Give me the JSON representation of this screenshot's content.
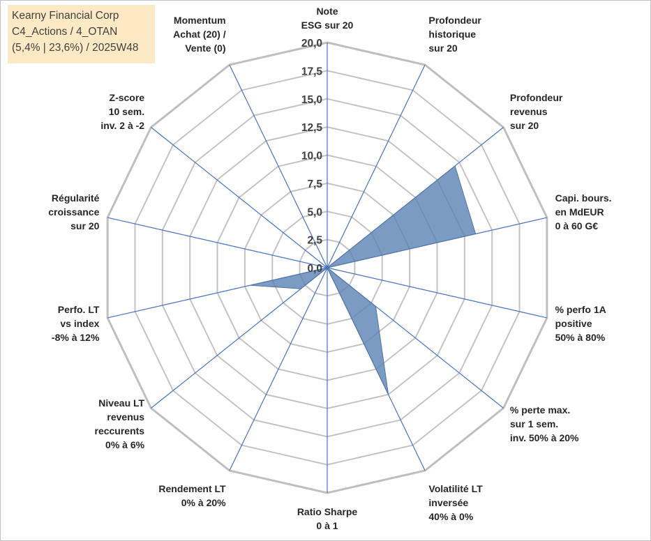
{
  "title_box": {
    "line1": "Kearny Financial Corp",
    "line2": "C4_Actions / 4_OTAN",
    "line3": "(5,4% | 23,6%) / 2025W48"
  },
  "chart_data": {
    "type": "radar",
    "title": "Kearny Financial Corp",
    "rmin": 0,
    "rmax": 20,
    "tick_labels": [
      "0,0",
      "2,5",
      "5,0",
      "7,5",
      "10,0",
      "12,5",
      "15,0",
      "17,5",
      "20,0"
    ],
    "axes": [
      [
        "Note",
        "ESG sur 20"
      ],
      [
        "Profondeur",
        "historique",
        "sur 20"
      ],
      [
        "Profondeur",
        "revenus",
        "sur 20"
      ],
      [
        "Capi. bours.",
        "en MdEUR",
        "0 à 60 G€"
      ],
      [
        "% perfo 1A",
        "positive",
        "50% à 80%"
      ],
      [
        "% perte max.",
        "sur 1 sem.",
        "inv. 50% à 20%"
      ],
      [
        "Volatilité LT",
        "inversée",
        "40% à 0%"
      ],
      [
        "Ratio Sharpe",
        "0 à 1"
      ],
      [
        "Rendement LT",
        "0% à 20%"
      ],
      [
        "Niveau LT",
        "revenus",
        "reccurents",
        "0% à 6%"
      ],
      [
        "Perfo. LT",
        "vs index",
        "-8% à 12%"
      ],
      [
        "Régularité",
        "croissance",
        "sur 20"
      ],
      [
        "Z-score",
        "10 sem.",
        "inv. 2 à -2"
      ],
      [
        "Momentum",
        "Achat (20) /",
        "Vente (0)"
      ]
    ],
    "series": [
      {
        "values": [
          0,
          0,
          14.5,
          13.5,
          0,
          5.5,
          12.5,
          0,
          0,
          3,
          7,
          0,
          0,
          0,
          0
        ]
      }
    ],
    "grid": true,
    "colors": {
      "fill": "#5b82b4",
      "fill_opacity": 0.8,
      "axis_line": "#4472c4",
      "grid_ring": "#c3c3c3",
      "outer_ring": "#bfbfbf"
    }
  }
}
